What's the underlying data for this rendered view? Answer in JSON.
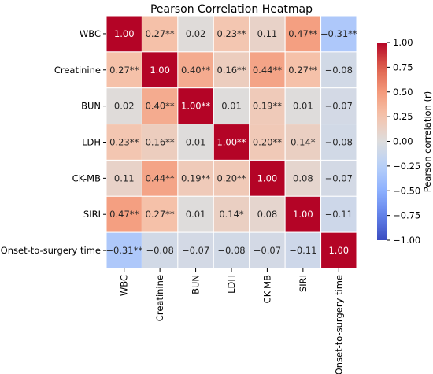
{
  "chart_data": {
    "type": "heatmap",
    "title": "Pearson Correlation Heatmap",
    "rows": [
      "WBC",
      "Creatinine",
      "BUN",
      "LDH",
      "CK-MB",
      "SIRI",
      "Onset-to-surgery time"
    ],
    "columns": [
      "WBC",
      "Creatinine",
      "BUN",
      "LDH",
      "CK-MB",
      "SIRI",
      "Onset-to-surgery time"
    ],
    "values": [
      [
        1.0,
        0.27,
        0.02,
        0.23,
        0.11,
        0.47,
        -0.31
      ],
      [
        0.27,
        1.0,
        0.4,
        0.16,
        0.44,
        0.27,
        -0.08
      ],
      [
        0.02,
        0.4,
        1.0,
        0.01,
        0.19,
        0.01,
        -0.07
      ],
      [
        0.23,
        0.16,
        0.01,
        1.0,
        0.2,
        0.14,
        -0.08
      ],
      [
        0.11,
        0.44,
        0.19,
        0.2,
        1.0,
        0.08,
        -0.07
      ],
      [
        0.47,
        0.27,
        0.01,
        0.14,
        0.08,
        1.0,
        -0.11
      ],
      [
        -0.31,
        -0.08,
        -0.07,
        -0.08,
        -0.07,
        -0.11,
        1.0
      ]
    ],
    "annotations": [
      [
        "1.00",
        "0.27**",
        "0.02",
        "0.23**",
        "0.11",
        "0.47**",
        "−0.31**"
      ],
      [
        "0.27**",
        "1.00",
        "0.40**",
        "0.16**",
        "0.44**",
        "0.27**",
        "−0.08"
      ],
      [
        "0.02",
        "0.40**",
        "1.00**",
        "0.01",
        "0.19**",
        "0.01",
        "−0.07"
      ],
      [
        "0.23**",
        "0.16**",
        "0.01",
        "1.00**",
        "0.20**",
        "0.14*",
        "−0.08"
      ],
      [
        "0.11",
        "0.44**",
        "0.19**",
        "0.20**",
        "1.00",
        "0.08",
        "−0.07"
      ],
      [
        "0.47**",
        "0.27**",
        "0.01",
        "0.14*",
        "0.08",
        "1.00",
        "−0.11"
      ],
      [
        "−0.31**",
        "−0.08",
        "−0.07",
        "−0.08",
        "−0.07",
        "−0.11",
        "1.00"
      ]
    ],
    "colormap": "coolwarm",
    "vmin": -1.0,
    "vmax": 1.0,
    "colorbar": {
      "label": "Pearson correlation (r)",
      "ticks": [
        1.0,
        0.75,
        0.5,
        0.25,
        0.0,
        -0.25,
        -0.5,
        -0.75,
        -1.0
      ],
      "tick_labels": [
        "1.00",
        "0.75",
        "0.50",
        "0.25",
        "0.00",
        "−0.25",
        "−0.50",
        "−0.75",
        "−1.00"
      ]
    },
    "grid": false
  }
}
